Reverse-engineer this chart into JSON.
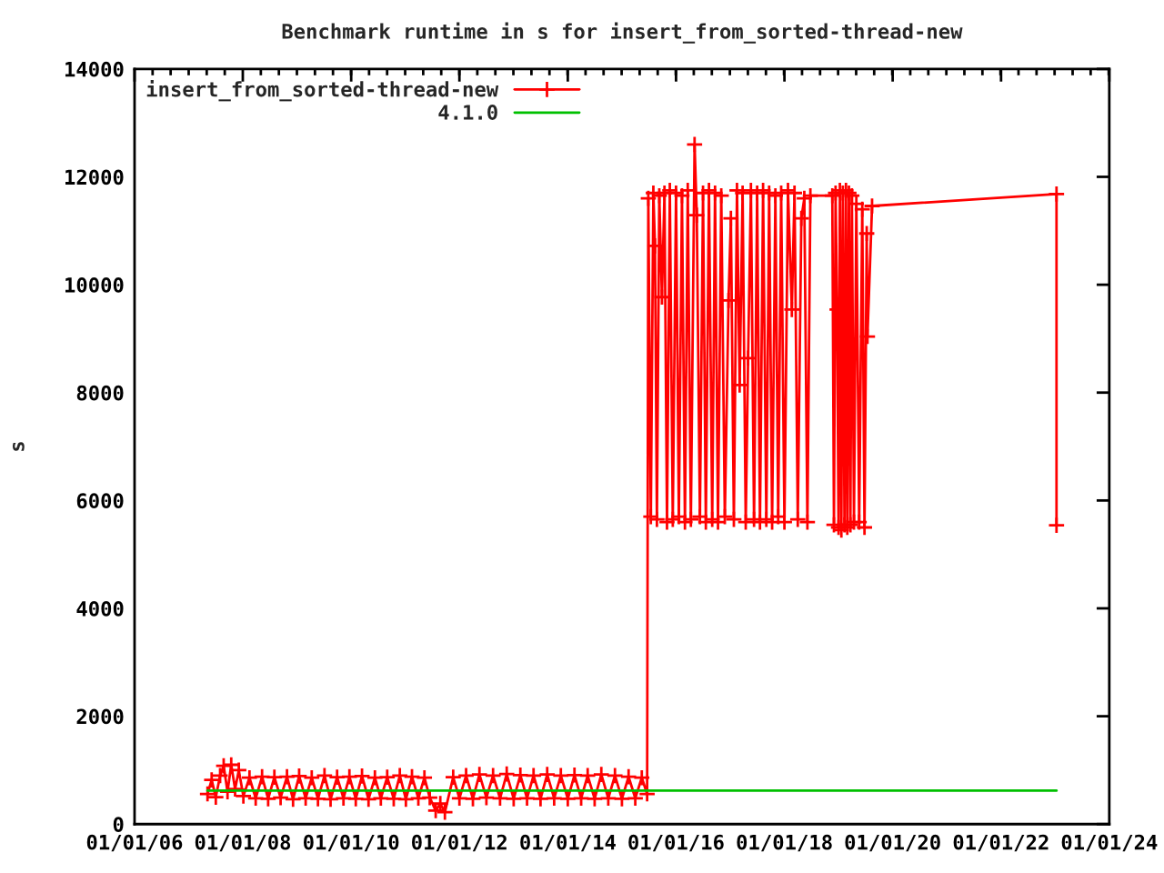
{
  "chart_data": {
    "type": "line",
    "title": "Benchmark runtime in s for insert_from_sorted-thread-new",
    "ylabel": "s",
    "xlim": [
      "2006-01-01",
      "2024-01-01"
    ],
    "xticks": [
      {
        "value": "2006-01-01",
        "label": "01/01/06"
      },
      {
        "value": "2008-01-01",
        "label": "01/01/08"
      },
      {
        "value": "2010-01-01",
        "label": "01/01/10"
      },
      {
        "value": "2012-01-01",
        "label": "01/01/12"
      },
      {
        "value": "2014-01-01",
        "label": "01/01/14"
      },
      {
        "value": "2016-01-01",
        "label": "01/01/16"
      },
      {
        "value": "2018-01-01",
        "label": "01/01/18"
      },
      {
        "value": "2020-01-01",
        "label": "01/01/20"
      },
      {
        "value": "2022-01-01",
        "label": "01/01/22"
      },
      {
        "value": "2024-01-01",
        "label": "01/01/24"
      }
    ],
    "ylim": [
      0,
      14000
    ],
    "yticks": [
      0,
      2000,
      4000,
      6000,
      8000,
      10000,
      12000,
      14000
    ],
    "legend": "top left",
    "series": [
      {
        "name": "insert_from_sorted-thread-new",
        "color": "#ff0000",
        "marker": "cross",
        "x": [
          "2007-05-08",
          "2007-06-05",
          "2007-07-03",
          "2007-08-01",
          "2007-08-25",
          "2007-09-20",
          "2007-10-15",
          "2007-11-10",
          "2007-12-05",
          "2008-01-05",
          "2008-02-15",
          "2008-03-28",
          "2008-05-10",
          "2008-06-20",
          "2008-08-01",
          "2008-09-12",
          "2008-10-25",
          "2008-12-05",
          "2009-01-15",
          "2009-02-28",
          "2009-04-10",
          "2009-05-22",
          "2009-07-05",
          "2009-08-15",
          "2009-09-28",
          "2009-11-10",
          "2009-12-20",
          "2010-02-01",
          "2010-03-15",
          "2010-04-28",
          "2010-06-10",
          "2010-07-20",
          "2010-09-01",
          "2010-10-15",
          "2010-11-25",
          "2011-01-05",
          "2011-02-15",
          "2011-03-30",
          "2011-05-10",
          "2011-06-15",
          "2011-07-25",
          "2011-08-25",
          "2011-09-25",
          "2011-11-20",
          "2012-01-01",
          "2012-02-15",
          "2012-04-01",
          "2012-05-15",
          "2012-07-01",
          "2012-08-15",
          "2012-10-01",
          "2012-11-15",
          "2013-01-01",
          "2013-02-15",
          "2013-04-01",
          "2013-05-15",
          "2013-07-01",
          "2013-08-15",
          "2013-10-01",
          "2013-11-15",
          "2014-01-01",
          "2014-02-15",
          "2014-04-01",
          "2014-05-15",
          "2014-07-01",
          "2014-08-15",
          "2014-10-01",
          "2014-11-15",
          "2015-01-01",
          "2015-02-15",
          "2015-04-01",
          "2015-05-15",
          "2015-06-20",
          "2015-06-28",
          "2015-07-15",
          "2015-08-01",
          "2015-08-12",
          "2015-08-25",
          "2015-09-10",
          "2015-09-28",
          "2015-10-15",
          "2015-11-01",
          "2015-11-20",
          "2015-12-10",
          "2016-01-01",
          "2016-01-20",
          "2016-02-10",
          "2016-03-01",
          "2016-03-20",
          "2016-04-10",
          "2016-05-05",
          "2016-05-20",
          "2016-06-10",
          "2016-07-01",
          "2016-07-20",
          "2016-08-10",
          "2016-09-01",
          "2016-09-20",
          "2016-10-10",
          "2016-11-01",
          "2016-11-25",
          "2016-12-20",
          "2017-01-05",
          "2017-01-25",
          "2017-02-15",
          "2017-03-05",
          "2017-03-25",
          "2017-04-15",
          "2017-05-01",
          "2017-05-20",
          "2017-06-10",
          "2017-07-01",
          "2017-07-20",
          "2017-08-10",
          "2017-09-01",
          "2017-09-20",
          "2017-10-10",
          "2017-11-01",
          "2017-11-20",
          "2017-12-10",
          "2018-01-01",
          "2018-01-25",
          "2018-02-20",
          "2018-03-10",
          "2018-04-01",
          "2018-04-25",
          "2018-05-15",
          "2018-06-05",
          "2018-06-25",
          "2018-11-20",
          "2018-12-01",
          "2018-12-12",
          "2018-12-22",
          "2019-01-01",
          "2019-01-10",
          "2019-01-20",
          "2019-01-30",
          "2019-02-10",
          "2019-02-20",
          "2019-03-01",
          "2019-03-12",
          "2019-03-22",
          "2019-04-01",
          "2019-04-15",
          "2019-05-01",
          "2019-05-20",
          "2019-06-10",
          "2019-06-25",
          "2019-07-10",
          "2019-07-15",
          "2019-08-15",
          "2023-01-10",
          "2023-01-10"
        ],
        "values": [
          560,
          820,
          500,
          900,
          1080,
          600,
          1100,
          650,
          1000,
          520,
          860,
          480,
          880,
          470,
          870,
          490,
          880,
          460,
          890,
          480,
          860,
          470,
          900,
          460,
          870,
          480,
          880,
          470,
          890,
          460,
          860,
          480,
          870,
          470,
          900,
          460,
          880,
          480,
          860,
          490,
          250,
          380,
          220,
          870,
          480,
          900,
          470,
          920,
          490,
          900,
          480,
          930,
          470,
          910,
          480,
          900,
          470,
          920,
          480,
          900,
          470,
          910,
          480,
          900,
          470,
          920,
          480,
          900,
          470,
          880,
          480,
          860,
          560,
          11600,
          5700,
          11700,
          10720,
          5650,
          11650,
          9770,
          11700,
          5600,
          11750,
          5650,
          11700,
          5700,
          11650,
          5600,
          11750,
          5650,
          12600,
          11290,
          5700,
          11700,
          5600,
          11750,
          5650,
          11700,
          5600,
          11650,
          5700,
          9710,
          11230,
          5650,
          11750,
          8140,
          11700,
          5600,
          8640,
          11750,
          5650,
          11700,
          5600,
          11750,
          5650,
          11700,
          5600,
          11650,
          5700,
          11700,
          5600,
          11750,
          9540,
          11700,
          5650,
          11230,
          11600,
          5600,
          11650,
          11650,
          5550,
          11700,
          9540,
          5500,
          11750,
          5450,
          11700,
          5550,
          11750,
          5500,
          11700,
          5550,
          11650,
          5600,
          11500,
          5600,
          11400,
          5500,
          10950,
          9040,
          11460,
          11680,
          5540
        ]
      },
      {
        "name": "4.1.0",
        "color": "#00c000",
        "marker": "none",
        "x": [
          "2007-05-08",
          "2023-01-10"
        ],
        "values": [
          620,
          620
        ]
      }
    ]
  }
}
